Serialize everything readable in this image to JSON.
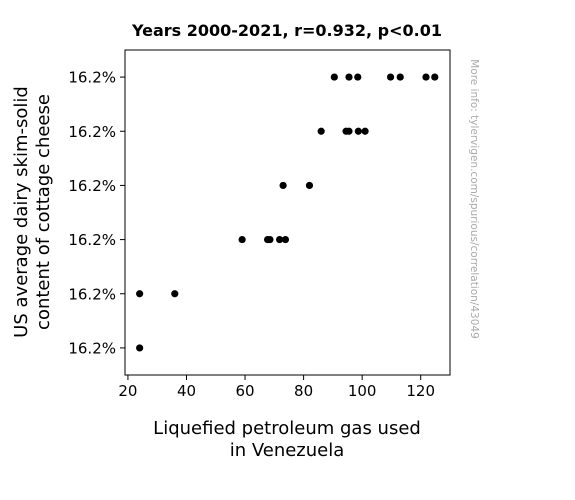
{
  "chart_data": {
    "type": "scatter",
    "title": "Years 2000-2021, r=0.932, p<0.01",
    "xlabel": [
      "Liquefied petroleum gas used",
      "in Venezuela"
    ],
    "ylabel": [
      "US average dairy skim-solid",
      "content of cottage cheese"
    ],
    "xlim": [
      19,
      130
    ],
    "ylim": [
      0.5,
      6.5
    ],
    "x_ticks": [
      20,
      40,
      60,
      80,
      100,
      120
    ],
    "y_ticks": [
      1,
      2,
      3,
      4,
      5,
      6
    ],
    "y_tick_labels": [
      "16.2%",
      "16.2%",
      "16.2%",
      "16.2%",
      "16.2%",
      "16.2%"
    ],
    "grid": false,
    "point_color": "#000000",
    "points": [
      {
        "x": 24,
        "y": 1
      },
      {
        "x": 24,
        "y": 2
      },
      {
        "x": 36,
        "y": 2
      },
      {
        "x": 59,
        "y": 3
      },
      {
        "x": 67.7,
        "y": 3
      },
      {
        "x": 68.5,
        "y": 3
      },
      {
        "x": 71.8,
        "y": 3
      },
      {
        "x": 73.8,
        "y": 3
      },
      {
        "x": 73,
        "y": 4
      },
      {
        "x": 82,
        "y": 4
      },
      {
        "x": 86,
        "y": 5
      },
      {
        "x": 94.5,
        "y": 5
      },
      {
        "x": 95.5,
        "y": 5
      },
      {
        "x": 98.7,
        "y": 5
      },
      {
        "x": 101,
        "y": 5
      },
      {
        "x": 90.5,
        "y": 6
      },
      {
        "x": 95.5,
        "y": 6
      },
      {
        "x": 98.5,
        "y": 6
      },
      {
        "x": 109.7,
        "y": 6
      },
      {
        "x": 113,
        "y": 6
      },
      {
        "x": 121.8,
        "y": 6
      },
      {
        "x": 124.8,
        "y": 6
      }
    ]
  },
  "side_note": "More info: tylervigen.com/spurious/correlation/43049"
}
